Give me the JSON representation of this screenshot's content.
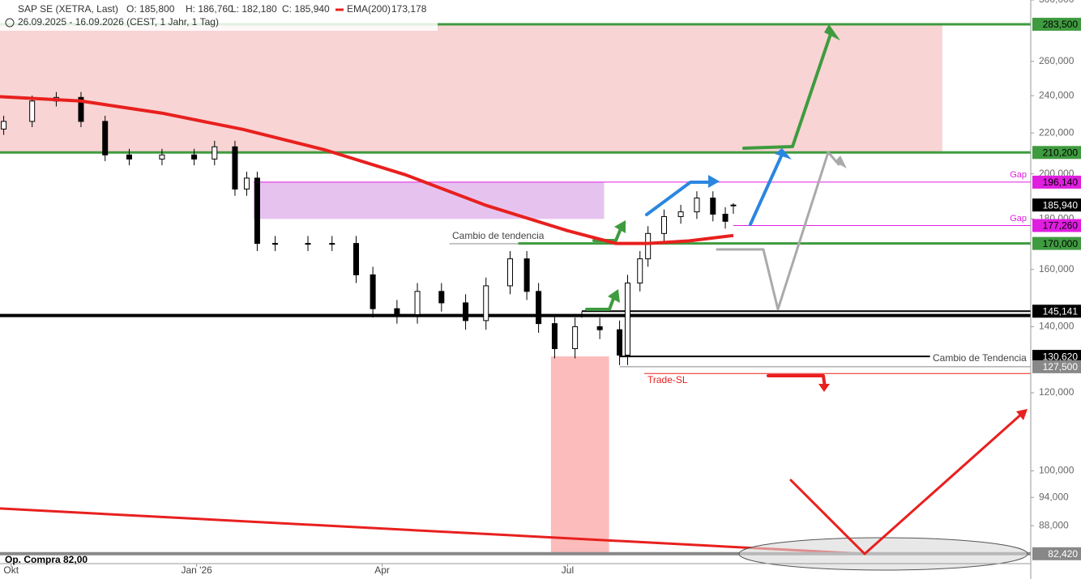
{
  "chart_data": {
    "type": "candlestick",
    "header": {
      "symbol": "SAP SE (XETRA, Last)",
      "ohlc": [
        "O: 185,800",
        "H: 186,760",
        "L: 182,180",
        "C: 185,940"
      ],
      "indicator": "EMA(200)",
      "indicator_value": "173,178",
      "range": "26.09.2025 - 16.09.2026 (CEST, 1 Jahr, 1 Tag)"
    },
    "log_scale": true,
    "xlim": [
      -0.18,
      16.49
    ],
    "ylim": [
      81,
      300
    ],
    "xticks": [
      {
        "value": 0,
        "label": "Okt"
      },
      {
        "value": 3,
        "label": "Jan '26"
      },
      {
        "value": 6,
        "label": "Apr"
      },
      {
        "value": 9,
        "label": "Jul"
      }
    ],
    "yticks": [
      {
        "value": 300,
        "label": "300,000"
      },
      {
        "value": 260,
        "label": "260,000"
      },
      {
        "value": 240,
        "label": "240,000"
      },
      {
        "value": 220,
        "label": "220,000"
      },
      {
        "value": 200,
        "label": "200,000"
      },
      {
        "value": 180,
        "label": "180,000"
      },
      {
        "value": 160,
        "label": "160,000"
      },
      {
        "value": 140,
        "label": "140,000"
      },
      {
        "value": 120,
        "label": "120,000"
      },
      {
        "value": 100,
        "label": "100,000"
      },
      {
        "value": 94,
        "label": "94,000"
      },
      {
        "value": 88,
        "label": "88,000"
      }
    ],
    "x": [
      -0.12,
      0.34,
      0.73,
      1.13,
      1.52,
      1.91,
      2.44,
      2.96,
      3.29,
      3.62,
      3.81,
      3.98,
      4.27,
      4.8,
      5.19,
      5.58,
      5.85,
      6.24,
      6.57,
      6.96,
      7.35,
      7.68,
      8.07,
      8.34,
      8.53,
      8.79,
      9.12,
      9.52,
      9.84,
      9.97,
      10.17,
      10.3,
      10.56,
      10.83,
      11.09,
      11.35,
      11.55,
      11.68
    ],
    "open": [
      222,
      226,
      237,
      239,
      226,
      209,
      207,
      209,
      207,
      213,
      193,
      198,
      170,
      170,
      170,
      170,
      158,
      146,
      144,
      152,
      148,
      142,
      154,
      164,
      152,
      141,
      133,
      140,
      139,
      131,
      155,
      164,
      174,
      181,
      183,
      189,
      182,
      185.8
    ],
    "high": [
      229,
      240,
      242,
      242,
      229,
      212,
      212,
      212,
      216,
      216,
      201,
      201,
      173,
      173,
      173,
      173,
      161,
      149,
      155,
      155,
      151,
      157,
      167,
      167,
      155,
      144,
      143,
      143,
      142,
      158,
      167,
      177,
      184,
      186,
      192,
      192,
      185,
      186.76
    ],
    "low": [
      219,
      223,
      234,
      223,
      206,
      204,
      204,
      204,
      204,
      190,
      190,
      167,
      167,
      167,
      167,
      155,
      143,
      141,
      141,
      145,
      139,
      139,
      151,
      149,
      138,
      130,
      130,
      136,
      128,
      128,
      152,
      161,
      171,
      178,
      180,
      179,
      176,
      182.18
    ],
    "close": [
      226,
      237,
      239,
      226,
      209,
      207,
      209,
      207,
      213,
      193,
      198,
      170,
      170,
      170,
      170,
      158,
      146,
      144,
      152,
      148,
      142,
      154,
      164,
      152,
      141,
      133,
      140,
      139,
      131,
      155,
      164,
      174,
      181,
      183,
      189,
      182,
      179,
      185.94
    ],
    "up_color": "#ffffff",
    "down_color": "#000000",
    "ema": {
      "color": "#e8201e",
      "x": [
        -0.18,
        1.13,
        2.44,
        3.75,
        5.06,
        6.37,
        7.68,
        8.99,
        9.78,
        10.3,
        10.96,
        11.68
      ],
      "values": [
        239.4,
        237,
        230.4,
        221.8,
        211.6,
        199.6,
        185.8,
        175.2,
        170,
        170,
        171,
        173.178
      ]
    },
    "zones": [
      {
        "color": "#f8d4d4",
        "x": [
          -0.18,
          15.06
        ],
        "y": [
          210.2,
          283.5
        ]
      },
      {
        "color": "#e6c3ef",
        "x": [
          3.92,
          9.59
        ],
        "y": [
          180,
          196.14
        ]
      },
      {
        "color": "#fcbcbc",
        "x": [
          8.73,
          9.67
        ],
        "y": [
          82.42,
          130.62
        ]
      }
    ],
    "trendline": {
      "color": "#e8201e",
      "x": [
        -0.18,
        13.77
      ],
      "values": [
        91.6,
        82.42
      ]
    },
    "levels": [
      {
        "value": 283.5,
        "label": "283,500",
        "color": "#3f9b3f",
        "from": -0.18,
        "width": 3
      },
      {
        "value": 210.2,
        "label": "210,200",
        "color": "#3f9b3f",
        "from": -0.18,
        "width": 3
      },
      {
        "value": 196.14,
        "label": "196,140",
        "color": "#e01ee0",
        "from": 3.92,
        "width": 1
      },
      {
        "value": 185.94,
        "label": "185,940",
        "color": "#000000"
      },
      {
        "value": 177.26,
        "label": "177,260",
        "color": "#e01ee0",
        "from": 11.68,
        "width": 1
      },
      {
        "value": 170,
        "label": "170,000",
        "color": "#3f9b3f",
        "from": 8.2,
        "width": 3
      },
      {
        "value": 145.141,
        "label": "145,141",
        "color": "#000000",
        "from": 9.23,
        "width": 2
      },
      {
        "value": 143.7,
        "color": "#000000",
        "from": -0.18,
        "width": 4
      },
      {
        "value": 130.62,
        "label": "130,620",
        "color": "#000000",
        "from": 9.84,
        "to": 14.86,
        "width": 2
      },
      {
        "value": 127.5,
        "label": "127,500",
        "color": "#888888",
        "from": 9.84,
        "width": 1
      },
      {
        "value": 125.5,
        "color": "#e8201e",
        "from": 10.24,
        "width": 1
      },
      {
        "value": 82.42,
        "label": "82,420",
        "color": "#888888",
        "from": -0.18,
        "width": 4
      }
    ],
    "annotations": {
      "gap_upper": "Gap",
      "gap_lower": "Gap",
      "trend_change_1": "Cambio de tendencia",
      "trend_change_2": "Cambio de Tendencia",
      "stop_loss": "Trade-SL",
      "entry": "Op. Compra  82,00"
    }
  }
}
